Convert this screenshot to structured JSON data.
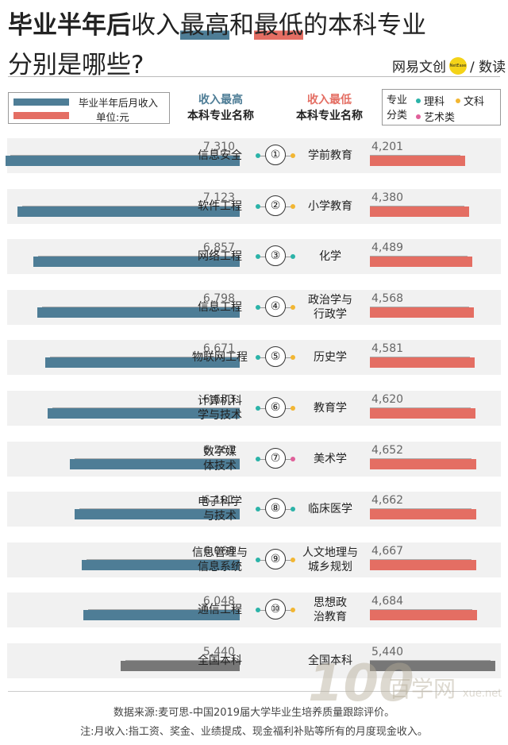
{
  "title": {
    "part1": "毕业半年后",
    "part2": "收入",
    "part3": "最高",
    "part4": "和",
    "part5": "最低",
    "part6": "的本科专业",
    "line2": "分别是哪些?"
  },
  "brand": {
    "name": "网易文创",
    "logo_text": "NetEase",
    "slash_label": "/ 数读"
  },
  "legend": {
    "series_label": "毕业半年后月收入",
    "unit_label": "单位:元",
    "blue": "#4e7d96",
    "red": "#e46e63"
  },
  "headers": {
    "left_line1": "收入最高",
    "left_line2": "本科专业名称",
    "right_line1": "收入最低",
    "right_line2": "本科专业名称"
  },
  "category_legend": {
    "label": "专业分类",
    "items": [
      {
        "name": "理科",
        "color": "#2bb3a8"
      },
      {
        "name": "文科",
        "color": "#f2b632"
      },
      {
        "name": "艺术类",
        "color": "#e0609a"
      }
    ]
  },
  "chart_data": {
    "type": "bar",
    "title": "毕业半年后收入最高和最低的本科专业分别是哪些?",
    "unit": "元",
    "ranks": [
      "①",
      "②",
      "③",
      "④",
      "⑤",
      "⑥",
      "⑦",
      "⑧",
      "⑨",
      "⑩"
    ],
    "highest": {
      "name": "收入最高",
      "categories": [
        "信息安全",
        "软件工程",
        "网络工程",
        "信息工程",
        "物联网工程",
        "计算机科学与技术",
        "数字媒体技术",
        "电子科学与技术",
        "信息管理与信息系统",
        "通信工程"
      ],
      "values": [
        7310,
        7123,
        6857,
        6798,
        6671,
        6633,
        6267,
        6191,
        6068,
        6048
      ],
      "display": [
        "7,310",
        "7,123",
        "6,857",
        "6,798",
        "6,671",
        "6,633",
        "6,267",
        "6,191",
        "6,068",
        "6,048"
      ],
      "kind": [
        "理科",
        "理科",
        "理科",
        "理科",
        "理科",
        "理科",
        "理科",
        "理科",
        "理科",
        "理科"
      ]
    },
    "lowest": {
      "name": "收入最低",
      "categories": [
        "学前教育",
        "小学教育",
        "化学",
        "政治学与行政学",
        "历史学",
        "教育学",
        "美术学",
        "临床医学",
        "人文地理与城乡规划",
        "思想政治教育"
      ],
      "values": [
        4201,
        4380,
        4489,
        4568,
        4581,
        4620,
        4652,
        4662,
        4667,
        4684
      ],
      "display": [
        "4,201",
        "4,380",
        "4,489",
        "4,568",
        "4,581",
        "4,620",
        "4,652",
        "4,662",
        "4,667",
        "4,684"
      ],
      "kind": [
        "文科",
        "文科",
        "理科",
        "文科",
        "文科",
        "文科",
        "艺术类",
        "理科",
        "文科",
        "文科"
      ]
    },
    "national": {
      "left_label": "全国本科",
      "right_label": "全国本科",
      "value": 5440,
      "display": "5,440",
      "color": "#777777"
    }
  },
  "footer": {
    "source": "数据来源:麦可思-中国2019届大学毕业生培养质量跟踪评价。",
    "note": "注:月收入:指工资、奖金、业绩提成、现金福利补贴等所有的月度现金收入。"
  },
  "watermark": {
    "main": "100",
    "sub": "百学网",
    "url": "xue.net"
  }
}
